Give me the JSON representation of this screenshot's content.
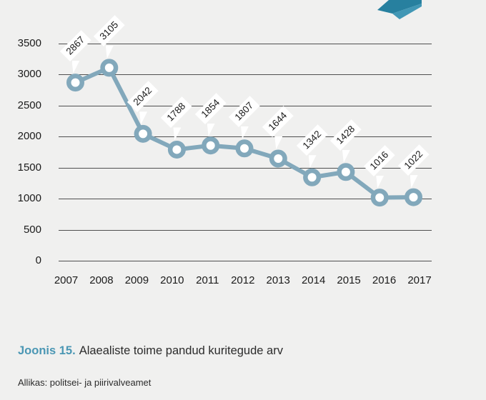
{
  "page": {
    "background_color": "#f0f0ef"
  },
  "decor": {
    "arrow_dark_color": "#27809f",
    "arrow_light_color": "#4197b5"
  },
  "chart_data": {
    "type": "line",
    "title": "",
    "xlabel": "",
    "ylabel": "",
    "categories": [
      "2007",
      "2008",
      "2009",
      "2010",
      "2011",
      "2012",
      "2013",
      "2014",
      "2015",
      "2016",
      "2017"
    ],
    "values": [
      2867,
      3105,
      2042,
      1788,
      1854,
      1807,
      1644,
      1342,
      1428,
      1016,
      1022
    ],
    "data_labels": [
      "2867",
      "3105",
      "2042",
      "1788",
      "1854",
      "1807",
      "1644",
      "1342",
      "1428",
      "1016",
      "1022"
    ],
    "yticks": [
      0,
      500,
      1000,
      1500,
      2000,
      2500,
      3000,
      3500
    ],
    "ylim": [
      0,
      3500
    ],
    "grid": true,
    "legend": false,
    "line_color": "#82a8bb",
    "marker_fill": "#ffffff",
    "grid_color": "#4f4f4f",
    "label_box_color": "#ffffff",
    "text_color": "#1b1b1b"
  },
  "caption": {
    "label": "Joonis 15.",
    "text": "Alaealiste toime pandud kuritegude arv",
    "label_color": "#4b97b4"
  },
  "source": {
    "text": "Allikas: politsei- ja piirivalveamet"
  }
}
